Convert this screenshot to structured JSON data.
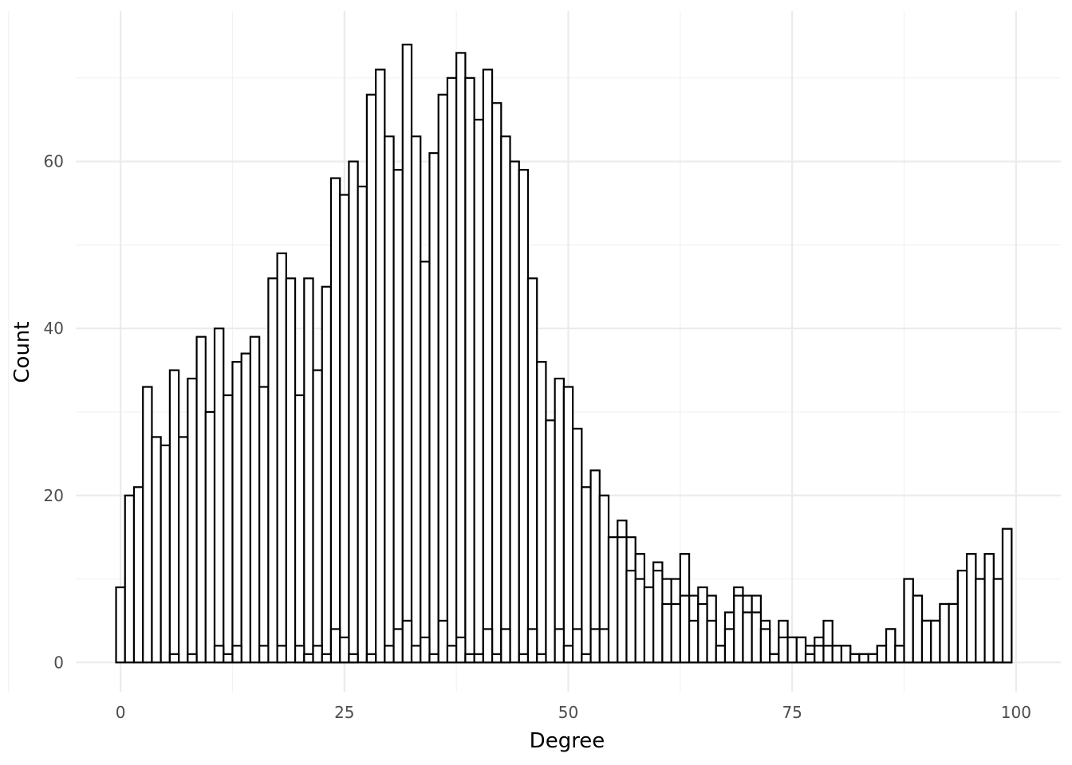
{
  "chart_data": {
    "type": "bar",
    "title": "",
    "xlabel": "Degree",
    "ylabel": "Count",
    "xlim": [
      -5,
      105
    ],
    "ylim": [
      -3.5,
      78
    ],
    "x_ticks": [
      0,
      25,
      50,
      75,
      100
    ],
    "y_ticks": [
      0,
      20,
      40,
      60
    ],
    "grid": true,
    "bin_width": 1,
    "series": [
      {
        "x": [
          0,
          1,
          2,
          3,
          4,
          5,
          6,
          7,
          8,
          9,
          10,
          11,
          12,
          13,
          14,
          15,
          16,
          17,
          18,
          19,
          20,
          21,
          22,
          23,
          24,
          25,
          26,
          27,
          28,
          29,
          30,
          31,
          32,
          33,
          34,
          35,
          36,
          37,
          38,
          39,
          40,
          41,
          42,
          43,
          44,
          45,
          46,
          47,
          48,
          49,
          50,
          51,
          52,
          53,
          54,
          55,
          56,
          57,
          58,
          59,
          60,
          61,
          62,
          63,
          64,
          65,
          66,
          67,
          68,
          69,
          70,
          71,
          72,
          73,
          74,
          75,
          76,
          77,
          78,
          79,
          80,
          81,
          82,
          83,
          84,
          85,
          86,
          87,
          88,
          89,
          90,
          91,
          92,
          93,
          94,
          95,
          96,
          97,
          98,
          99
        ],
        "values": [
          9,
          20,
          21,
          33,
          27,
          26,
          35,
          27,
          34,
          39,
          30,
          40,
          32,
          36,
          37,
          39,
          33,
          46,
          49,
          46,
          32,
          46,
          35,
          45,
          58,
          56,
          60,
          57,
          68,
          71,
          63,
          59,
          74,
          63,
          48,
          61,
          68,
          70,
          73,
          70,
          65,
          71,
          67,
          63,
          60,
          59,
          46,
          36,
          29,
          34,
          33,
          28,
          21,
          23,
          20,
          15,
          17,
          15,
          13,
          9,
          12,
          10,
          10,
          13,
          8,
          9,
          8,
          2,
          6,
          9,
          8,
          8,
          5,
          1,
          5,
          3,
          3,
          2,
          3,
          5,
          2,
          2,
          1,
          1,
          1,
          2,
          4,
          2,
          10,
          8,
          5,
          5,
          7,
          7,
          11,
          13,
          10,
          13,
          10,
          16
        ]
      },
      {
        "x": [
          0,
          1,
          2,
          3,
          4,
          5,
          6,
          7,
          8,
          9,
          10,
          11,
          12,
          13,
          14,
          15,
          16,
          17,
          18,
          19,
          20,
          21,
          22,
          23,
          24,
          25,
          26,
          27,
          28,
          29,
          30,
          31,
          32,
          33,
          34,
          35,
          36,
          37,
          38,
          39,
          40,
          41,
          42,
          43,
          44,
          45,
          46,
          47,
          48,
          49,
          50,
          51,
          52,
          53,
          54,
          55,
          56,
          57,
          58,
          59,
          60,
          61,
          62,
          63,
          64,
          65,
          66,
          67,
          68,
          69,
          70,
          71,
          72,
          73,
          74,
          75,
          76,
          77,
          78,
          79,
          80,
          81,
          82,
          83,
          84,
          85,
          86,
          87,
          88,
          89,
          90,
          91,
          92,
          93,
          94,
          95,
          96,
          97,
          98,
          99
        ],
        "values": [
          0,
          0,
          0,
          0,
          0,
          0,
          1,
          0,
          1,
          0,
          0,
          2,
          1,
          2,
          0,
          0,
          2,
          0,
          2,
          0,
          2,
          1,
          2,
          1,
          4,
          3,
          1,
          0,
          1,
          0,
          2,
          4,
          5,
          2,
          3,
          1,
          5,
          2,
          3,
          1,
          1,
          4,
          1,
          4,
          0,
          1,
          4,
          1,
          0,
          4,
          2,
          4,
          1,
          4,
          4,
          15,
          15,
          11,
          10,
          9,
          11,
          7,
          7,
          8,
          5,
          7,
          5,
          2,
          4,
          8,
          6,
          6,
          4,
          1,
          3,
          3,
          3,
          1,
          2,
          2,
          2,
          2,
          1,
          1,
          1,
          2,
          4,
          2,
          10,
          8,
          5,
          5,
          7,
          7,
          11,
          13,
          10,
          13,
          10,
          16
        ]
      }
    ]
  }
}
